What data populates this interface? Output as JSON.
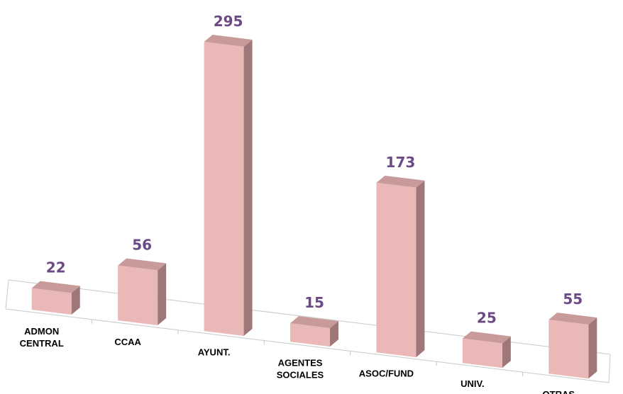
{
  "chart_data": {
    "type": "bar",
    "categories": [
      [
        "ADMON",
        "CENTRAL"
      ],
      [
        "CCAA"
      ],
      [
        "AYUNT."
      ],
      [
        "AGENTES",
        "SOCIALES"
      ],
      [
        "ASOC/FUND"
      ],
      [
        "UNIV."
      ],
      [
        "OTRAS"
      ]
    ],
    "values": [
      22,
      56,
      295,
      15,
      173,
      25,
      55
    ],
    "data_labels": [
      "22",
      "56",
      "295",
      "15",
      "173",
      "25",
      "55"
    ],
    "title": "",
    "xlabel": "",
    "ylabel": "",
    "ylim": [
      0,
      300
    ],
    "grid": false,
    "legend": "none",
    "colors": {
      "bar_front": "#ebb8b8",
      "bar_side": "#9e7878",
      "bar_top": "#c99a9a",
      "value_label": "#6b4a86",
      "axis": "#c8c8c8"
    }
  }
}
